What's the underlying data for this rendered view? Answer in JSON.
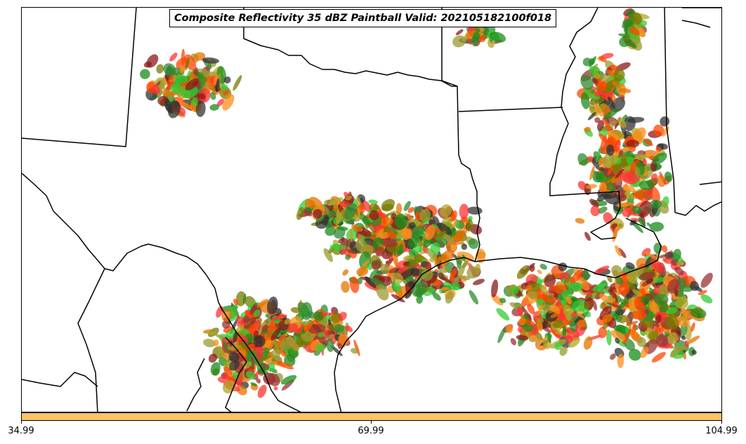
{
  "title": "Composite Reflectivity 35 dBZ Paintball Valid: 202105182100f018",
  "colorbar": {
    "color": "#ffc266",
    "ticks": [
      "34.99",
      "69.99",
      "104.99"
    ]
  },
  "member_colors": [
    "#ff3333",
    "#ff8c1a",
    "#e67300",
    "#993333",
    "#8b1a1a",
    "#33cc33",
    "#1a8c1a",
    "#2e8b2e",
    "#999933",
    "#b3a626",
    "#7a7a00",
    "#333333",
    "#ff4500"
  ],
  "line_color": "#000000"
}
